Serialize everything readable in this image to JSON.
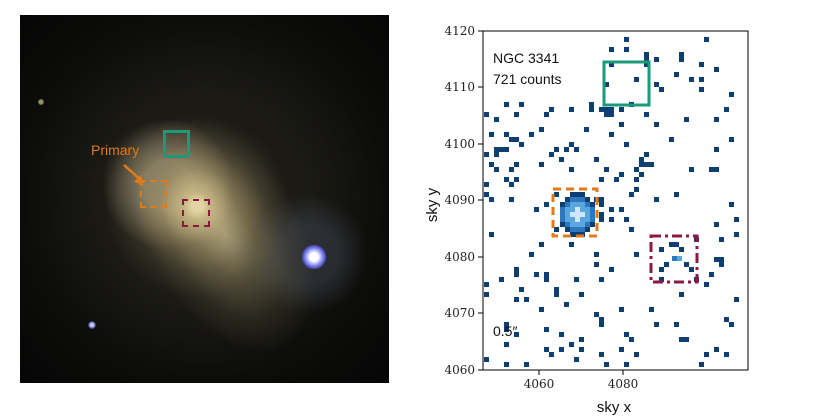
{
  "optical": {
    "primary_label": "Primary"
  },
  "plot": {
    "galaxy_name": "NGC 3341",
    "counts_text": "721 counts",
    "scale_text": "0.5″",
    "xlabel": "sky x",
    "ylabel": "sky y",
    "x_ticks": [
      "4060",
      "4080"
    ],
    "y_ticks": [
      "4060",
      "4070",
      "4080",
      "4090",
      "4100",
      "4110",
      "4120"
    ]
  },
  "colors": {
    "green": "#1a9a76",
    "orange": "#e07a1b",
    "maroon": "#8b1843",
    "pixel": "#0d3f73"
  }
}
